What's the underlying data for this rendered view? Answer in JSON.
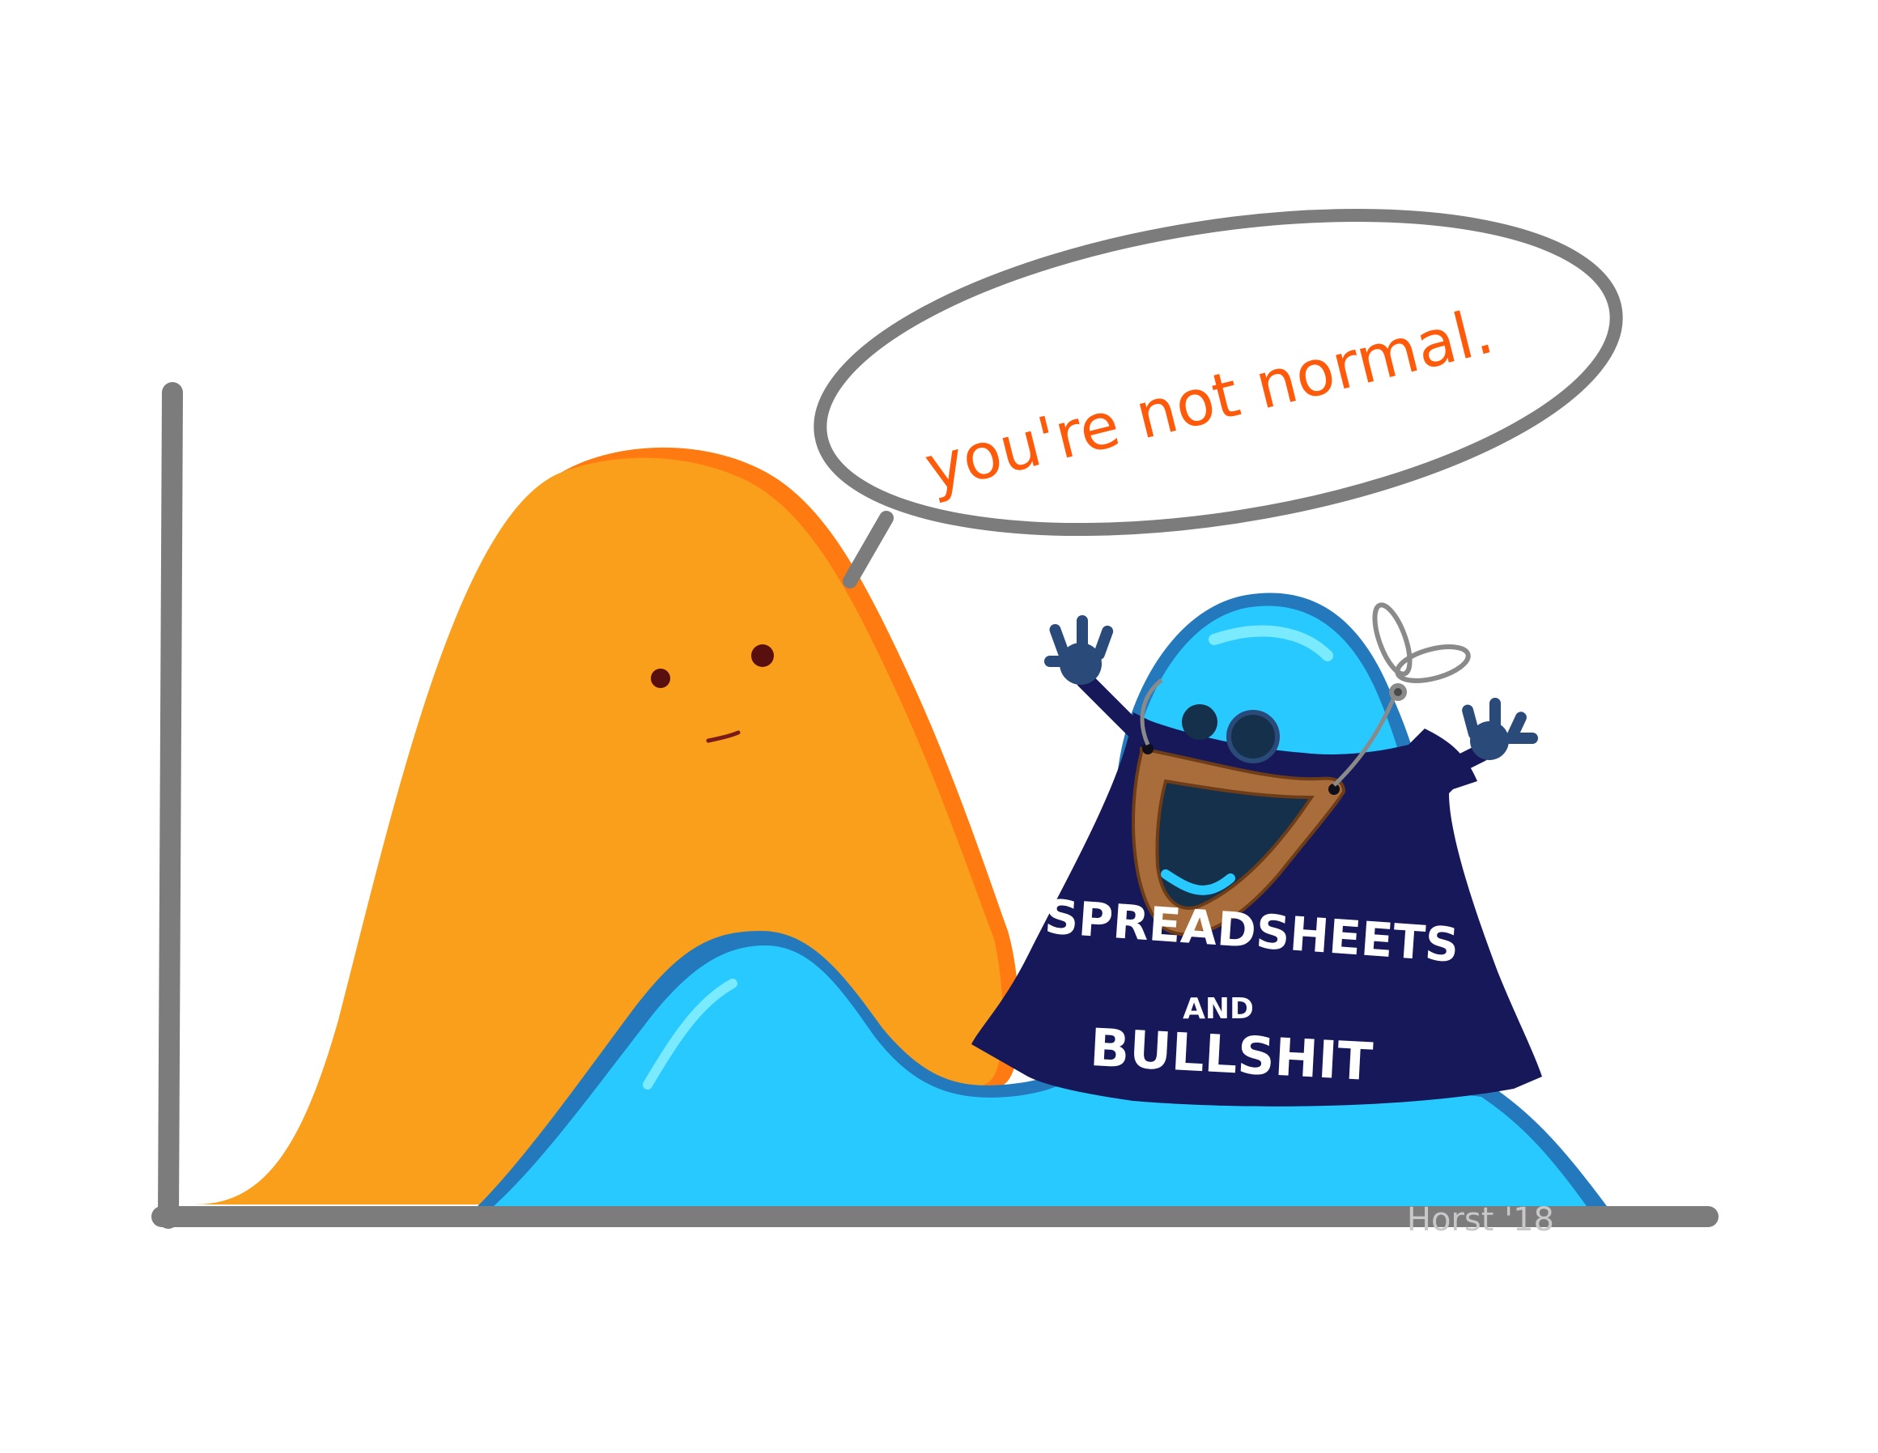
{
  "speech_bubble": {
    "text": "you're not normal."
  },
  "shirt": {
    "line1": "SPREADSHEETS",
    "line2": "AND",
    "line3": "BULLSHIT"
  },
  "signature": "Horst '18",
  "colors": {
    "background": "#ffffff",
    "axis": "#7c7c7c",
    "normal_fill": "#f99f1b",
    "normal_outline": "#ff7a10",
    "bimodal_fill": "#27c9ff",
    "bimodal_outline": "#2479bd",
    "shirt": "#16185a",
    "mask": "#a86d3a",
    "speech_text": "#ff5a0a",
    "eyes_dark": "#5a0f0f",
    "mouth_inner": "#14304a"
  }
}
